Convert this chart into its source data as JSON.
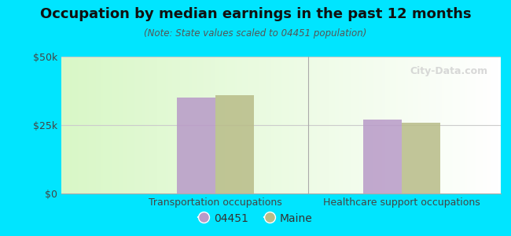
{
  "title": "Occupation by median earnings in the past 12 months",
  "subtitle": "(Note: State values scaled to 04451 population)",
  "categories": [
    "Transportation occupations",
    "Healthcare support occupations"
  ],
  "values_04451": [
    35000,
    27000
  ],
  "values_maine": [
    36000,
    26000
  ],
  "bar_color_04451": "#b89ac8",
  "bar_color_maine": "#b8bc88",
  "ylim": [
    0,
    50000
  ],
  "yticks": [
    0,
    25000,
    50000
  ],
  "ytick_labels": [
    "$0",
    "$25k",
    "$50k"
  ],
  "background_outer": "#00e5ff",
  "legend_labels": [
    "04451",
    "Maine"
  ],
  "watermark": "City-Data.com",
  "bar_width": 0.35,
  "group_centers": [
    0.9,
    2.6
  ],
  "xlim": [
    -0.5,
    3.5
  ]
}
